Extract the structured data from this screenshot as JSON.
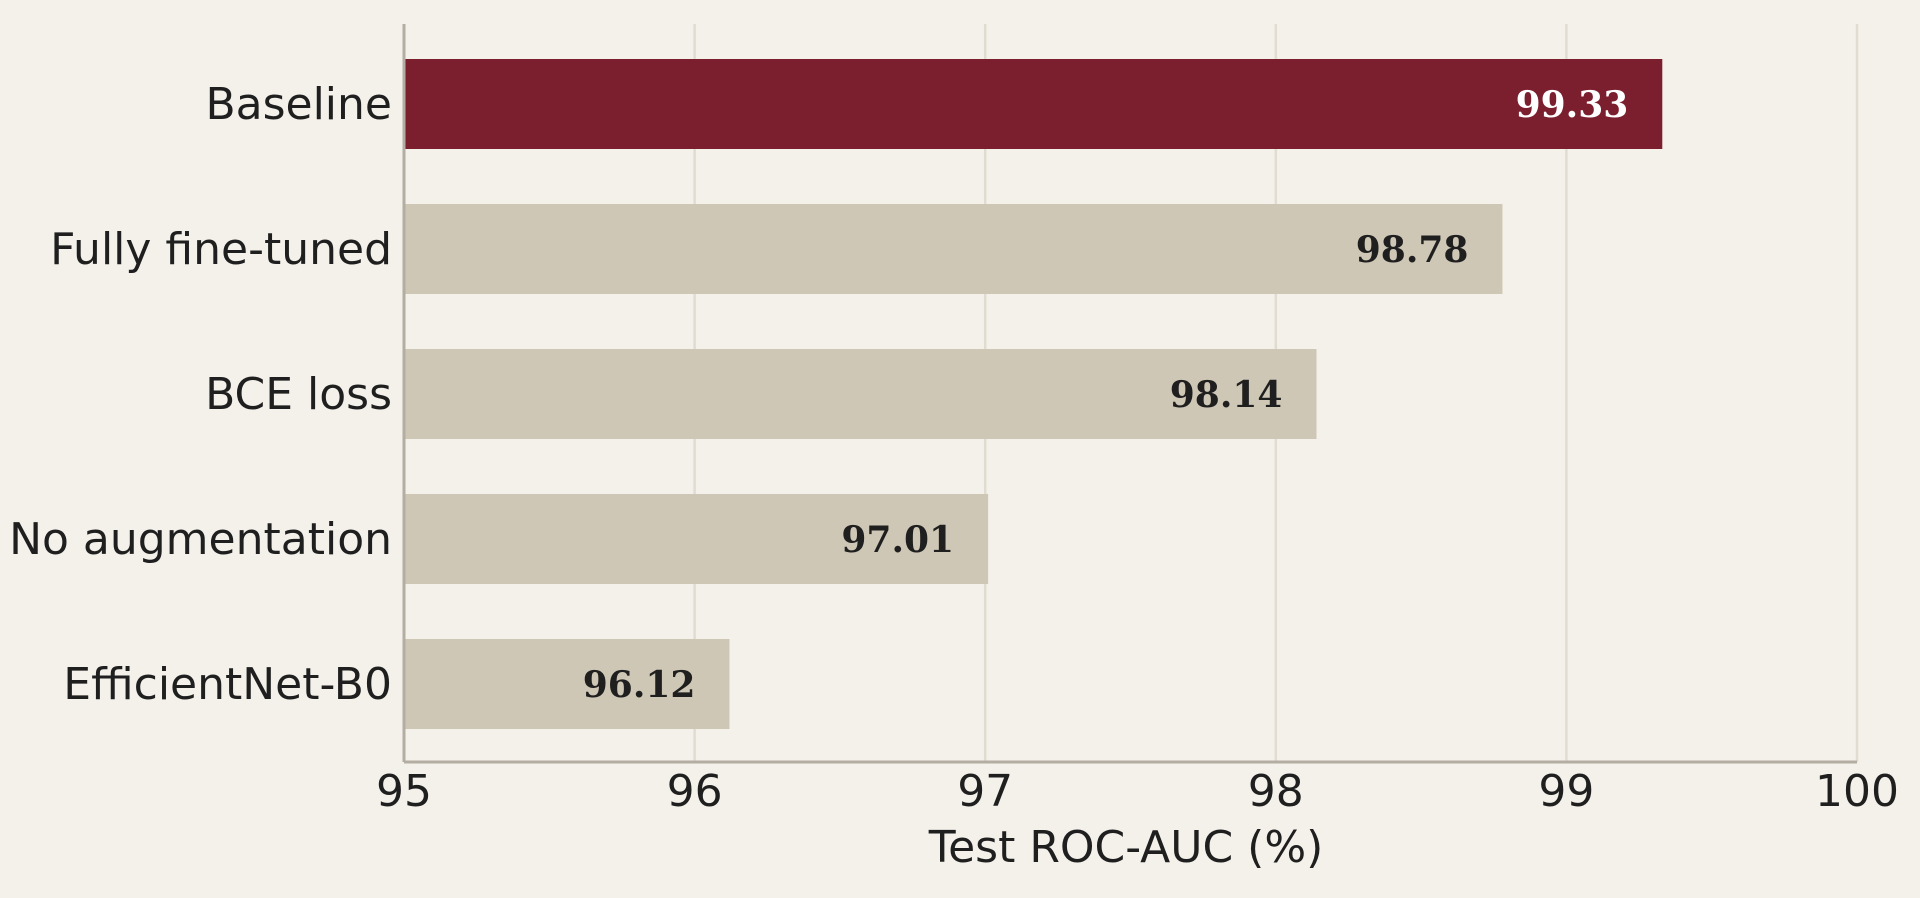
{
  "chart_data": {
    "type": "bar",
    "orientation": "horizontal",
    "categories": [
      "Baseline",
      "Fully fine-tuned",
      "BCE loss",
      "No augmentation",
      "EfficientNet-B0"
    ],
    "values": [
      99.33,
      98.78,
      98.14,
      97.01,
      96.12
    ],
    "value_labels": [
      "99.33",
      "98.78",
      "98.14",
      "97.01",
      "96.12"
    ],
    "highlight_index": 0,
    "xlabel": "Test ROC-AUC (%)",
    "ylabel": "",
    "title": "",
    "xlim": [
      95,
      100
    ],
    "xticks": [
      "95",
      "96",
      "97",
      "98",
      "99",
      "100"
    ],
    "grid": "vertical",
    "colors": {
      "background": "#f4f1ea",
      "highlight_bar": "#7b1f2e",
      "bar": "#cfc7b5",
      "grid": "#e1dcd1",
      "axis": "#b3ada2",
      "highlight_label": "#ffffff",
      "label": "#1f1f1f"
    }
  }
}
